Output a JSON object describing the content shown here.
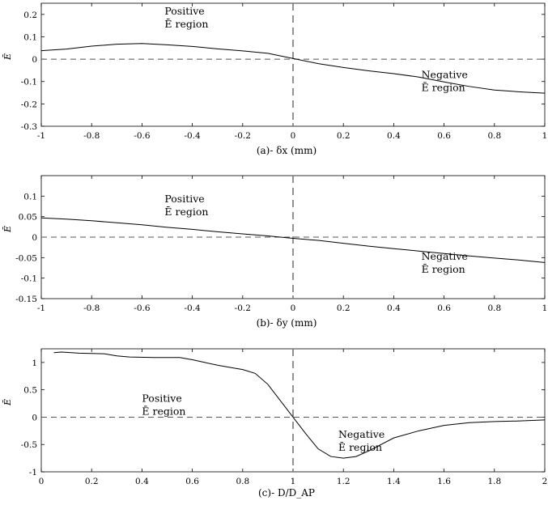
{
  "chart_data": [
    {
      "type": "line",
      "panel": "a",
      "xlabel": "(a)- δx (mm)",
      "ylabel": "Ē",
      "xlim": [
        -1,
        1
      ],
      "ylim": [
        -0.3,
        0.25
      ],
      "xticks": [
        -1,
        -0.8,
        -0.6,
        -0.4,
        -0.2,
        0,
        0.2,
        0.4,
        0.6,
        0.8,
        1
      ],
      "xtick_labels": [
        "-1",
        "-0.8",
        "-0.6",
        "-0.4",
        "-0.2",
        "0",
        "0.2",
        "0.4",
        "0.6",
        "0.8",
        "1"
      ],
      "yticks": [
        -0.3,
        -0.2,
        -0.1,
        0,
        0.1,
        0.2
      ],
      "ytick_labels": [
        "-0.3",
        "-0.2",
        "-0.1",
        "0",
        "0.1",
        "0.2"
      ],
      "grid": false,
      "reference_lines": {
        "y": 0,
        "x": 0,
        "style": "dashed"
      },
      "annotations": [
        {
          "lines": [
            "Positive",
            "Ē region"
          ],
          "x": -0.51,
          "y": 0.2
        },
        {
          "lines": [
            "Negative",
            "Ē region"
          ],
          "x": 0.51,
          "y": -0.085
        }
      ],
      "series": [
        {
          "x": [
            -1,
            -0.9,
            -0.8,
            -0.7,
            -0.6,
            -0.5,
            -0.4,
            -0.3,
            -0.2,
            -0.1,
            0,
            0.1,
            0.2,
            0.3,
            0.4,
            0.5,
            0.6,
            0.7,
            0.8,
            0.9,
            1
          ],
          "y": [
            0.038,
            0.045,
            0.058,
            0.067,
            0.07,
            0.064,
            0.057,
            0.046,
            0.037,
            0.026,
            0.003,
            -0.02,
            -0.037,
            -0.052,
            -0.065,
            -0.08,
            -0.102,
            -0.122,
            -0.138,
            -0.146,
            -0.152
          ]
        }
      ]
    },
    {
      "type": "line",
      "panel": "b",
      "xlabel": "(b)- δy (mm)",
      "ylabel": "Ē",
      "xlim": [
        -1,
        1
      ],
      "ylim": [
        -0.15,
        0.15
      ],
      "xticks": [
        -1,
        -0.8,
        -0.6,
        -0.4,
        -0.2,
        0,
        0.2,
        0.4,
        0.6,
        0.8,
        1
      ],
      "xtick_labels": [
        "-1",
        "-0.8",
        "-0.6",
        "-0.4",
        "-0.2",
        "0",
        "0.2",
        "0.4",
        "0.6",
        "0.8",
        "1"
      ],
      "yticks": [
        -0.15,
        -0.1,
        -0.05,
        0,
        0.05,
        0.1
      ],
      "ytick_labels": [
        "-0.15",
        "-0.1",
        "-0.05",
        "0",
        "0.05",
        "0.1"
      ],
      "grid": false,
      "reference_lines": {
        "y": 0,
        "x": 0,
        "style": "dashed"
      },
      "annotations": [
        {
          "lines": [
            "Positive",
            "Ē region"
          ],
          "x": -0.51,
          "y": 0.085
        },
        {
          "lines": [
            "Negative",
            "Ē region"
          ],
          "x": 0.51,
          "y": -0.055
        }
      ],
      "series": [
        {
          "x": [
            -1,
            -0.9,
            -0.8,
            -0.7,
            -0.6,
            -0.5,
            -0.4,
            -0.3,
            -0.2,
            -0.1,
            0,
            0.1,
            0.2,
            0.3,
            0.4,
            0.5,
            0.6,
            0.7,
            0.8,
            0.9,
            1
          ],
          "y": [
            0.047,
            0.044,
            0.04,
            0.035,
            0.03,
            0.024,
            0.019,
            0.013,
            0.008,
            0.003,
            -0.003,
            -0.008,
            -0.015,
            -0.022,
            -0.028,
            -0.034,
            -0.04,
            -0.046,
            -0.051,
            -0.056,
            -0.062
          ]
        }
      ]
    },
    {
      "type": "line",
      "panel": "c",
      "xlabel": "(c)- D/D_AP",
      "ylabel": "Ē",
      "xlim": [
        0,
        2
      ],
      "ylim": [
        -1,
        1.25
      ],
      "xticks": [
        0,
        0.2,
        0.4,
        0.6,
        0.8,
        1,
        1.2,
        1.4,
        1.6,
        1.8,
        2
      ],
      "xtick_labels": [
        "0",
        "0.2",
        "0.4",
        "0.6",
        "0.8",
        "1",
        "1.2",
        "1.4",
        "1.6",
        "1.8",
        "2"
      ],
      "yticks": [
        -1,
        -0.5,
        0,
        0.5,
        1
      ],
      "ytick_labels": [
        "-1",
        "-0.5",
        "0",
        "0.5",
        "1"
      ],
      "grid": false,
      "reference_lines": {
        "y": 0,
        "x": 1,
        "style": "dashed"
      },
      "annotations": [
        {
          "lines": [
            "Positive",
            "Ē region"
          ],
          "x": 0.4,
          "y": 0.28
        },
        {
          "lines": [
            "Negative",
            "Ē region"
          ],
          "x": 1.18,
          "y": -0.38
        }
      ],
      "series": [
        {
          "x": [
            0.05,
            0.08,
            0.15,
            0.25,
            0.3,
            0.35,
            0.45,
            0.55,
            0.6,
            0.65,
            0.7,
            0.75,
            0.8,
            0.85,
            0.9,
            0.95,
            1,
            1.05,
            1.1,
            1.15,
            1.2,
            1.25,
            1.3,
            1.4,
            1.5,
            1.6,
            1.7,
            1.8,
            1.9,
            2
          ],
          "y": [
            1.18,
            1.19,
            1.17,
            1.16,
            1.12,
            1.1,
            1.09,
            1.09,
            1.05,
            1.0,
            0.95,
            0.91,
            0.87,
            0.8,
            0.6,
            0.3,
            0.0,
            -0.3,
            -0.58,
            -0.72,
            -0.75,
            -0.72,
            -0.62,
            -0.38,
            -0.25,
            -0.15,
            -0.1,
            -0.08,
            -0.07,
            -0.05
          ]
        }
      ]
    }
  ]
}
